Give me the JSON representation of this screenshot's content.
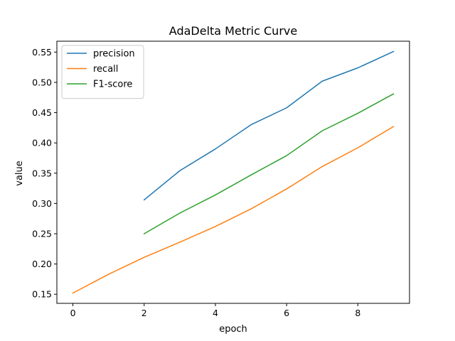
{
  "chart_data": {
    "type": "line",
    "title": "AdaDelta Metric Curve",
    "xlabel": "epoch",
    "ylabel": "value",
    "xlim": [
      -0.45,
      9.45
    ],
    "ylim": [
      0.135,
      0.568
    ],
    "xticks": [
      0,
      2,
      4,
      6,
      8
    ],
    "yticks": [
      0.15,
      0.2,
      0.25,
      0.3,
      0.35,
      0.4,
      0.45,
      0.5,
      0.55
    ],
    "grid": false,
    "legend_position": "top-left",
    "series": [
      {
        "name": "precision",
        "color": "#1f77b4",
        "x": [
          2,
          3,
          4,
          5,
          6,
          7,
          8,
          9
        ],
        "values": [
          0.306,
          0.354,
          0.39,
          0.43,
          0.458,
          0.502,
          0.524,
          0.551
        ]
      },
      {
        "name": "recall",
        "color": "#ff7f0e",
        "x": [
          0,
          1,
          2,
          3,
          4,
          5,
          6,
          7,
          8,
          9
        ],
        "values": [
          0.152,
          0.183,
          0.211,
          0.236,
          0.262,
          0.291,
          0.324,
          0.361,
          0.392,
          0.427
        ]
      },
      {
        "name": "F1-score",
        "color": "#2ca02c",
        "x": [
          2,
          3,
          4,
          5,
          6,
          7,
          8,
          9
        ],
        "values": [
          0.25,
          0.284,
          0.314,
          0.347,
          0.379,
          0.42,
          0.449,
          0.481
        ]
      }
    ]
  }
}
